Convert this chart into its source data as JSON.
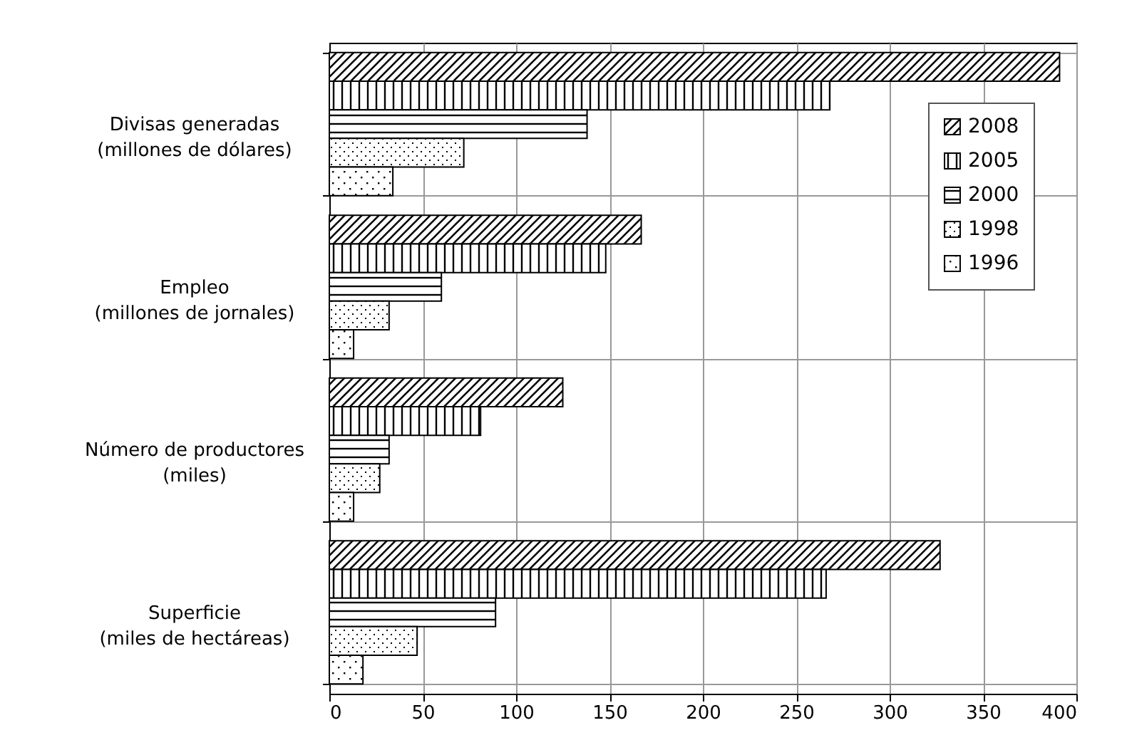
{
  "chart_data": {
    "type": "bar",
    "orientation": "horizontal",
    "categories": [
      "Divisas generadas\n(millones de dólares)",
      "Empleo\n(millones de jornales)",
      "Número de productores\n(miles)",
      "Superficie\n(miles de hectáreas)"
    ],
    "series": [
      {
        "name": "2008",
        "color": "#000000",
        "values": [
          391,
          167,
          125,
          327
        ]
      },
      {
        "name": "2005",
        "color": "#000000",
        "values": [
          268,
          148,
          81,
          266
        ]
      },
      {
        "name": "2000",
        "color": "#000000",
        "values": [
          138,
          60,
          32,
          89
        ]
      },
      {
        "name": "1998",
        "color": "#000000",
        "values": [
          72,
          32,
          27,
          47
        ]
      },
      {
        "name": "1996",
        "color": "#000000",
        "values": [
          34,
          13,
          13,
          18
        ]
      }
    ],
    "xlim": [
      0,
      400
    ],
    "xticks": [
      0,
      50,
      100,
      150,
      200,
      250,
      300,
      350,
      400
    ],
    "grid": true,
    "legend": "top right"
  }
}
